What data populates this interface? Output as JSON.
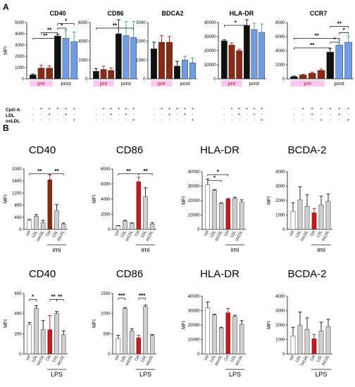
{
  "panel_labels": [
    "A",
    "B"
  ],
  "row_labels": [
    "CpG-A",
    "LDL",
    "oxLDL"
  ],
  "plusminus": {
    "cpga": [
      "-",
      "+",
      "+",
      "+",
      "+",
      "+",
      "+"
    ],
    "ldl": [
      "-",
      "-",
      "+",
      "-",
      "-",
      "+",
      "-"
    ],
    "oxldl": [
      "-",
      "-",
      "-",
      "+",
      "-",
      "-",
      "+"
    ]
  },
  "group_labels": {
    "pre": "pre",
    "post": "post",
    "imi": "imi",
    "lps": "LPS"
  },
  "colors": {
    "black": "#111111",
    "darkred": "#8b2a14",
    "red": "#c8171d",
    "blue": "#6e9de3",
    "grey": "#cfcfcf",
    "white": "#ffffff",
    "pink": "#f06ad6"
  },
  "chart_data": [
    {
      "id": "A1",
      "type": "bar",
      "panel": "A",
      "title": "CD40",
      "ylabel": "MFI",
      "ylim": [
        0,
        5000
      ],
      "ticks": [
        0,
        1000,
        2000,
        3000,
        4000,
        5000
      ],
      "values": [
        350,
        950,
        950,
        3800,
        3600,
        3300
      ],
      "errors": [
        80,
        250,
        200,
        150,
        700,
        850
      ],
      "colors": [
        "black",
        "darkred",
        "darkred",
        "black",
        "blue",
        "blue"
      ],
      "groups": [
        {
          "label": "pre",
          "from": 0,
          "to": 2
        },
        {
          "label": "post",
          "from": 3,
          "to": 5
        }
      ],
      "sig": [
        {
          "a": 0,
          "b": 3,
          "text": "**",
          "level": 0.72
        },
        {
          "a": 1,
          "b": 3,
          "text": "**",
          "level": 0.82
        },
        {
          "a": 3,
          "b": 4,
          "text": "*",
          "level": 0.9
        },
        {
          "a": 3,
          "b": 5,
          "text": "*",
          "level": 0.98
        }
      ]
    },
    {
      "id": "A2",
      "type": "bar",
      "panel": "A",
      "title": "CD86",
      "ylabel": "",
      "ylim": [
        0,
        6000
      ],
      "ticks": [
        0,
        2000,
        4000,
        6000
      ],
      "values": [
        800,
        1000,
        900,
        4800,
        4600,
        4400
      ],
      "errors": [
        300,
        350,
        250,
        1500,
        1500,
        1700
      ],
      "colors": [
        "black",
        "darkred",
        "darkred",
        "black",
        "blue",
        "blue"
      ],
      "groups": [
        {
          "label": "pre",
          "from": 0,
          "to": 2
        },
        {
          "label": "post",
          "from": 3,
          "to": 5
        }
      ],
      "sig": [
        {
          "a": 0,
          "b": 5,
          "text": "**",
          "level": 0.9
        }
      ]
    },
    {
      "id": "A3",
      "type": "bar",
      "panel": "A",
      "title": "BDCA2",
      "ylabel": "",
      "ylim": [
        0,
        3000
      ],
      "ticks": [
        0,
        1000,
        2000,
        3000
      ],
      "values": [
        1600,
        1950,
        1950,
        680,
        1000,
        850
      ],
      "errors": [
        350,
        350,
        300,
        250,
        200,
        250
      ],
      "colors": [
        "black",
        "darkred",
        "darkred",
        "black",
        "blue",
        "blue"
      ],
      "groups": [
        {
          "label": "pre",
          "from": 0,
          "to": 2
        },
        {
          "label": "post",
          "from": 3,
          "to": 5
        }
      ],
      "sig": []
    },
    {
      "id": "A4",
      "type": "bar",
      "panel": "A",
      "title": "HLA-DR",
      "ylabel": "",
      "ylim": [
        0,
        40000
      ],
      "ticks": [
        0,
        10000,
        20000,
        30000,
        40000
      ],
      "values": [
        27000,
        24000,
        20000,
        38000,
        35000,
        33000
      ],
      "errors": [
        800,
        1500,
        1000,
        4000,
        4500,
        6000
      ],
      "colors": [
        "black",
        "darkred",
        "darkred",
        "black",
        "blue",
        "blue"
      ],
      "groups": [
        {
          "label": "pre",
          "from": 0,
          "to": 2
        },
        {
          "label": "post",
          "from": 3,
          "to": 5
        }
      ],
      "sig": [
        {
          "a": 0,
          "b": 3,
          "text": "*",
          "level": 0.95
        }
      ]
    },
    {
      "id": "A5",
      "type": "bar",
      "panel": "A",
      "title": "CCR7",
      "ylabel": "",
      "ylim": [
        0,
        8000
      ],
      "ticks": [
        0,
        2000,
        4000,
        6000,
        8000
      ],
      "values": [
        300,
        550,
        800,
        1200,
        3800,
        4800,
        5200
      ],
      "errors": [
        100,
        100,
        150,
        200,
        500,
        700,
        900
      ],
      "colors": [
        "black",
        "darkred",
        "darkred",
        "darkred",
        "black",
        "blue",
        "blue"
      ],
      "groups": [
        {
          "label": "pre",
          "from": 0,
          "to": 3
        },
        {
          "label": "post",
          "from": 4,
          "to": 6
        }
      ],
      "sig": [
        {
          "a": 0,
          "b": 4,
          "text": "**",
          "level": 0.55
        },
        {
          "a": 0,
          "b": 5,
          "text": "**",
          "level": 0.72
        },
        {
          "a": 4,
          "b": 5,
          "text": "*",
          "level": 0.65
        },
        {
          "a": 5,
          "b": 6,
          "text": "*",
          "level": 0.82
        },
        {
          "a": 4,
          "b": 6,
          "text": "**",
          "level": 0.93
        }
      ]
    },
    {
      "id": "B1",
      "type": "bar",
      "panel": "B",
      "title": "CD40",
      "ylabel": "MFI",
      "ylim": [
        0,
        2000
      ],
      "ticks": [
        0,
        400,
        800,
        1200,
        1600,
        2000
      ],
      "categories": [
        "ctrl",
        "LDL",
        "oxLDL",
        "Ctrl",
        "LDL",
        "oxLDL"
      ],
      "values": [
        300,
        430,
        220,
        1640,
        620,
        170
      ],
      "errors": [
        30,
        60,
        80,
        160,
        200,
        40
      ],
      "colors": [
        "white",
        "grey",
        "grey",
        "darkred",
        "grey",
        "grey"
      ],
      "group": {
        "label": "imi",
        "from": 3,
        "to": 5
      },
      "sig": [
        {
          "a": 0,
          "b": 3,
          "text": "**",
          "level": 0.92
        },
        {
          "a": 3,
          "b": 5,
          "text": "**",
          "level": 0.92
        }
      ]
    },
    {
      "id": "B2",
      "type": "bar",
      "panel": "B",
      "title": "CD86",
      "ylabel": "MFI",
      "ylim": [
        0,
        8000
      ],
      "ticks": [
        0,
        2000,
        4000,
        6000,
        8000
      ],
      "categories": [
        "ctrl",
        "LDL",
        "oxLDL",
        "Ctrl",
        "LDL",
        "oxLDL"
      ],
      "values": [
        450,
        1100,
        800,
        6300,
        4300,
        700
      ],
      "errors": [
        60,
        100,
        60,
        600,
        1200,
        200
      ],
      "colors": [
        "white",
        "grey",
        "grey",
        "red",
        "grey",
        "grey"
      ],
      "group": {
        "label": "imi",
        "from": 3,
        "to": 5
      },
      "sig": [
        {
          "a": 0,
          "b": 3,
          "text": "**",
          "level": 0.92
        },
        {
          "a": 3,
          "b": 5,
          "text": "**",
          "level": 0.92
        }
      ]
    },
    {
      "id": "B3",
      "type": "bar",
      "panel": "B",
      "title": "HLA-DR",
      "ylabel": "MFI",
      "ylim": [
        0,
        40000
      ],
      "ticks": [
        0,
        10000,
        20000,
        30000,
        40000
      ],
      "categories": [
        "ctrl",
        "LDL",
        "oxLDL",
        "Ctrl",
        "LDL",
        "oxLDL"
      ],
      "values": [
        31000,
        27000,
        18000,
        21000,
        21500,
        19000
      ],
      "errors": [
        4000,
        500,
        500,
        500,
        800,
        1500
      ],
      "colors": [
        "white",
        "grey",
        "grey",
        "red",
        "grey",
        "grey"
      ],
      "group": {
        "label": "imi",
        "from": 3,
        "to": 5
      },
      "sig": [
        {
          "a": 0,
          "b": 2,
          "text": "*",
          "level": 0.85
        },
        {
          "a": 0,
          "b": 3,
          "text": "*",
          "level": 0.95
        }
      ]
    },
    {
      "id": "B4",
      "type": "bar",
      "panel": "B",
      "title": "BCDA-2",
      "ylabel": "MFI",
      "ylim": [
        0,
        4000
      ],
      "ticks": [
        0,
        1000,
        2000,
        3000,
        4000
      ],
      "categories": [
        "ctrl",
        "LDL",
        "oxLDL",
        "Ctrl",
        "LDL",
        "oxLDL"
      ],
      "values": [
        1250,
        2050,
        1600,
        1150,
        1700,
        1950
      ],
      "errors": [
        600,
        900,
        800,
        300,
        600,
        500
      ],
      "colors": [
        "white",
        "grey",
        "grey",
        "red",
        "grey",
        "grey"
      ],
      "group": {
        "label": "imi",
        "from": 3,
        "to": 5
      },
      "sig": []
    },
    {
      "id": "B5",
      "type": "bar",
      "panel": "B",
      "title": "CD40",
      "ylabel": "MFI",
      "ylim": [
        0,
        600
      ],
      "ticks": [
        0,
        200,
        400,
        600
      ],
      "categories": [
        "ctrl",
        "LDL",
        "oxLDL",
        "Ctrl",
        "LDL",
        "oxLDL"
      ],
      "values": [
        290,
        450,
        240,
        240,
        400,
        190
      ],
      "errors": [
        20,
        30,
        90,
        140,
        20,
        40
      ],
      "colors": [
        "white",
        "grey",
        "grey",
        "red",
        "grey",
        "grey"
      ],
      "group": {
        "label": "LPS",
        "from": 3,
        "to": 5
      },
      "sig": [
        {
          "a": 0,
          "b": 1,
          "text": "*",
          "level": 0.9
        },
        {
          "a": 3,
          "b": 4,
          "text": "**",
          "level": 0.9
        },
        {
          "a": 4,
          "b": 5,
          "text": "**",
          "level": 0.9
        }
      ]
    },
    {
      "id": "B6",
      "type": "bar",
      "panel": "B",
      "title": "CD86",
      "ylabel": "MFI",
      "ylim": [
        0,
        1500
      ],
      "ticks": [
        0,
        500,
        1000,
        1500
      ],
      "categories": [
        "ctrl",
        "LDL",
        "oxLDL",
        "Ctrl",
        "LDL",
        "oxLDL"
      ],
      "values": [
        380,
        1130,
        570,
        400,
        1170,
        460
      ],
      "errors": [
        80,
        20,
        50,
        60,
        40,
        20
      ],
      "colors": [
        "white",
        "grey",
        "grey",
        "red",
        "grey",
        "grey"
      ],
      "group": {
        "label": "LPS",
        "from": 3,
        "to": 5
      },
      "sig": [
        {
          "a": 0,
          "b": 1,
          "text": "***",
          "level": 0.92
        },
        {
          "a": 3,
          "b": 4,
          "text": "***",
          "level": 0.92
        }
      ]
    },
    {
      "id": "B7",
      "type": "bar",
      "panel": "B",
      "title": "HLA-DR",
      "ylabel": "MFI",
      "ylim": [
        0,
        40000
      ],
      "ticks": [
        0,
        10000,
        20000,
        30000,
        40000
      ],
      "categories": [
        "ctrl",
        "LDL",
        "oxLDL",
        "Ctrl",
        "LDL",
        "oxLDL"
      ],
      "values": [
        32000,
        27000,
        18000,
        28500,
        26000,
        20500
      ],
      "errors": [
        4000,
        500,
        500,
        3000,
        800,
        2500
      ],
      "colors": [
        "white",
        "grey",
        "grey",
        "red",
        "grey",
        "grey"
      ],
      "group": {
        "label": "LPS",
        "from": 3,
        "to": 5
      },
      "sig": []
    },
    {
      "id": "B8",
      "type": "bar",
      "panel": "B",
      "title": "BCDA-2",
      "ylabel": "MFI",
      "ylim": [
        0,
        4000
      ],
      "ticks": [
        0,
        1000,
        2000,
        3000,
        4000
      ],
      "categories": [
        "ctrl",
        "LDL",
        "oxLDL",
        "Ctrl",
        "LDL",
        "oxLDL"
      ],
      "values": [
        1250,
        2000,
        1700,
        1050,
        1600,
        1900
      ],
      "errors": [
        600,
        900,
        800,
        300,
        600,
        500
      ],
      "colors": [
        "white",
        "grey",
        "grey",
        "red",
        "grey",
        "grey"
      ],
      "group": {
        "label": "LPS",
        "from": 3,
        "to": 5
      },
      "sig": []
    }
  ]
}
